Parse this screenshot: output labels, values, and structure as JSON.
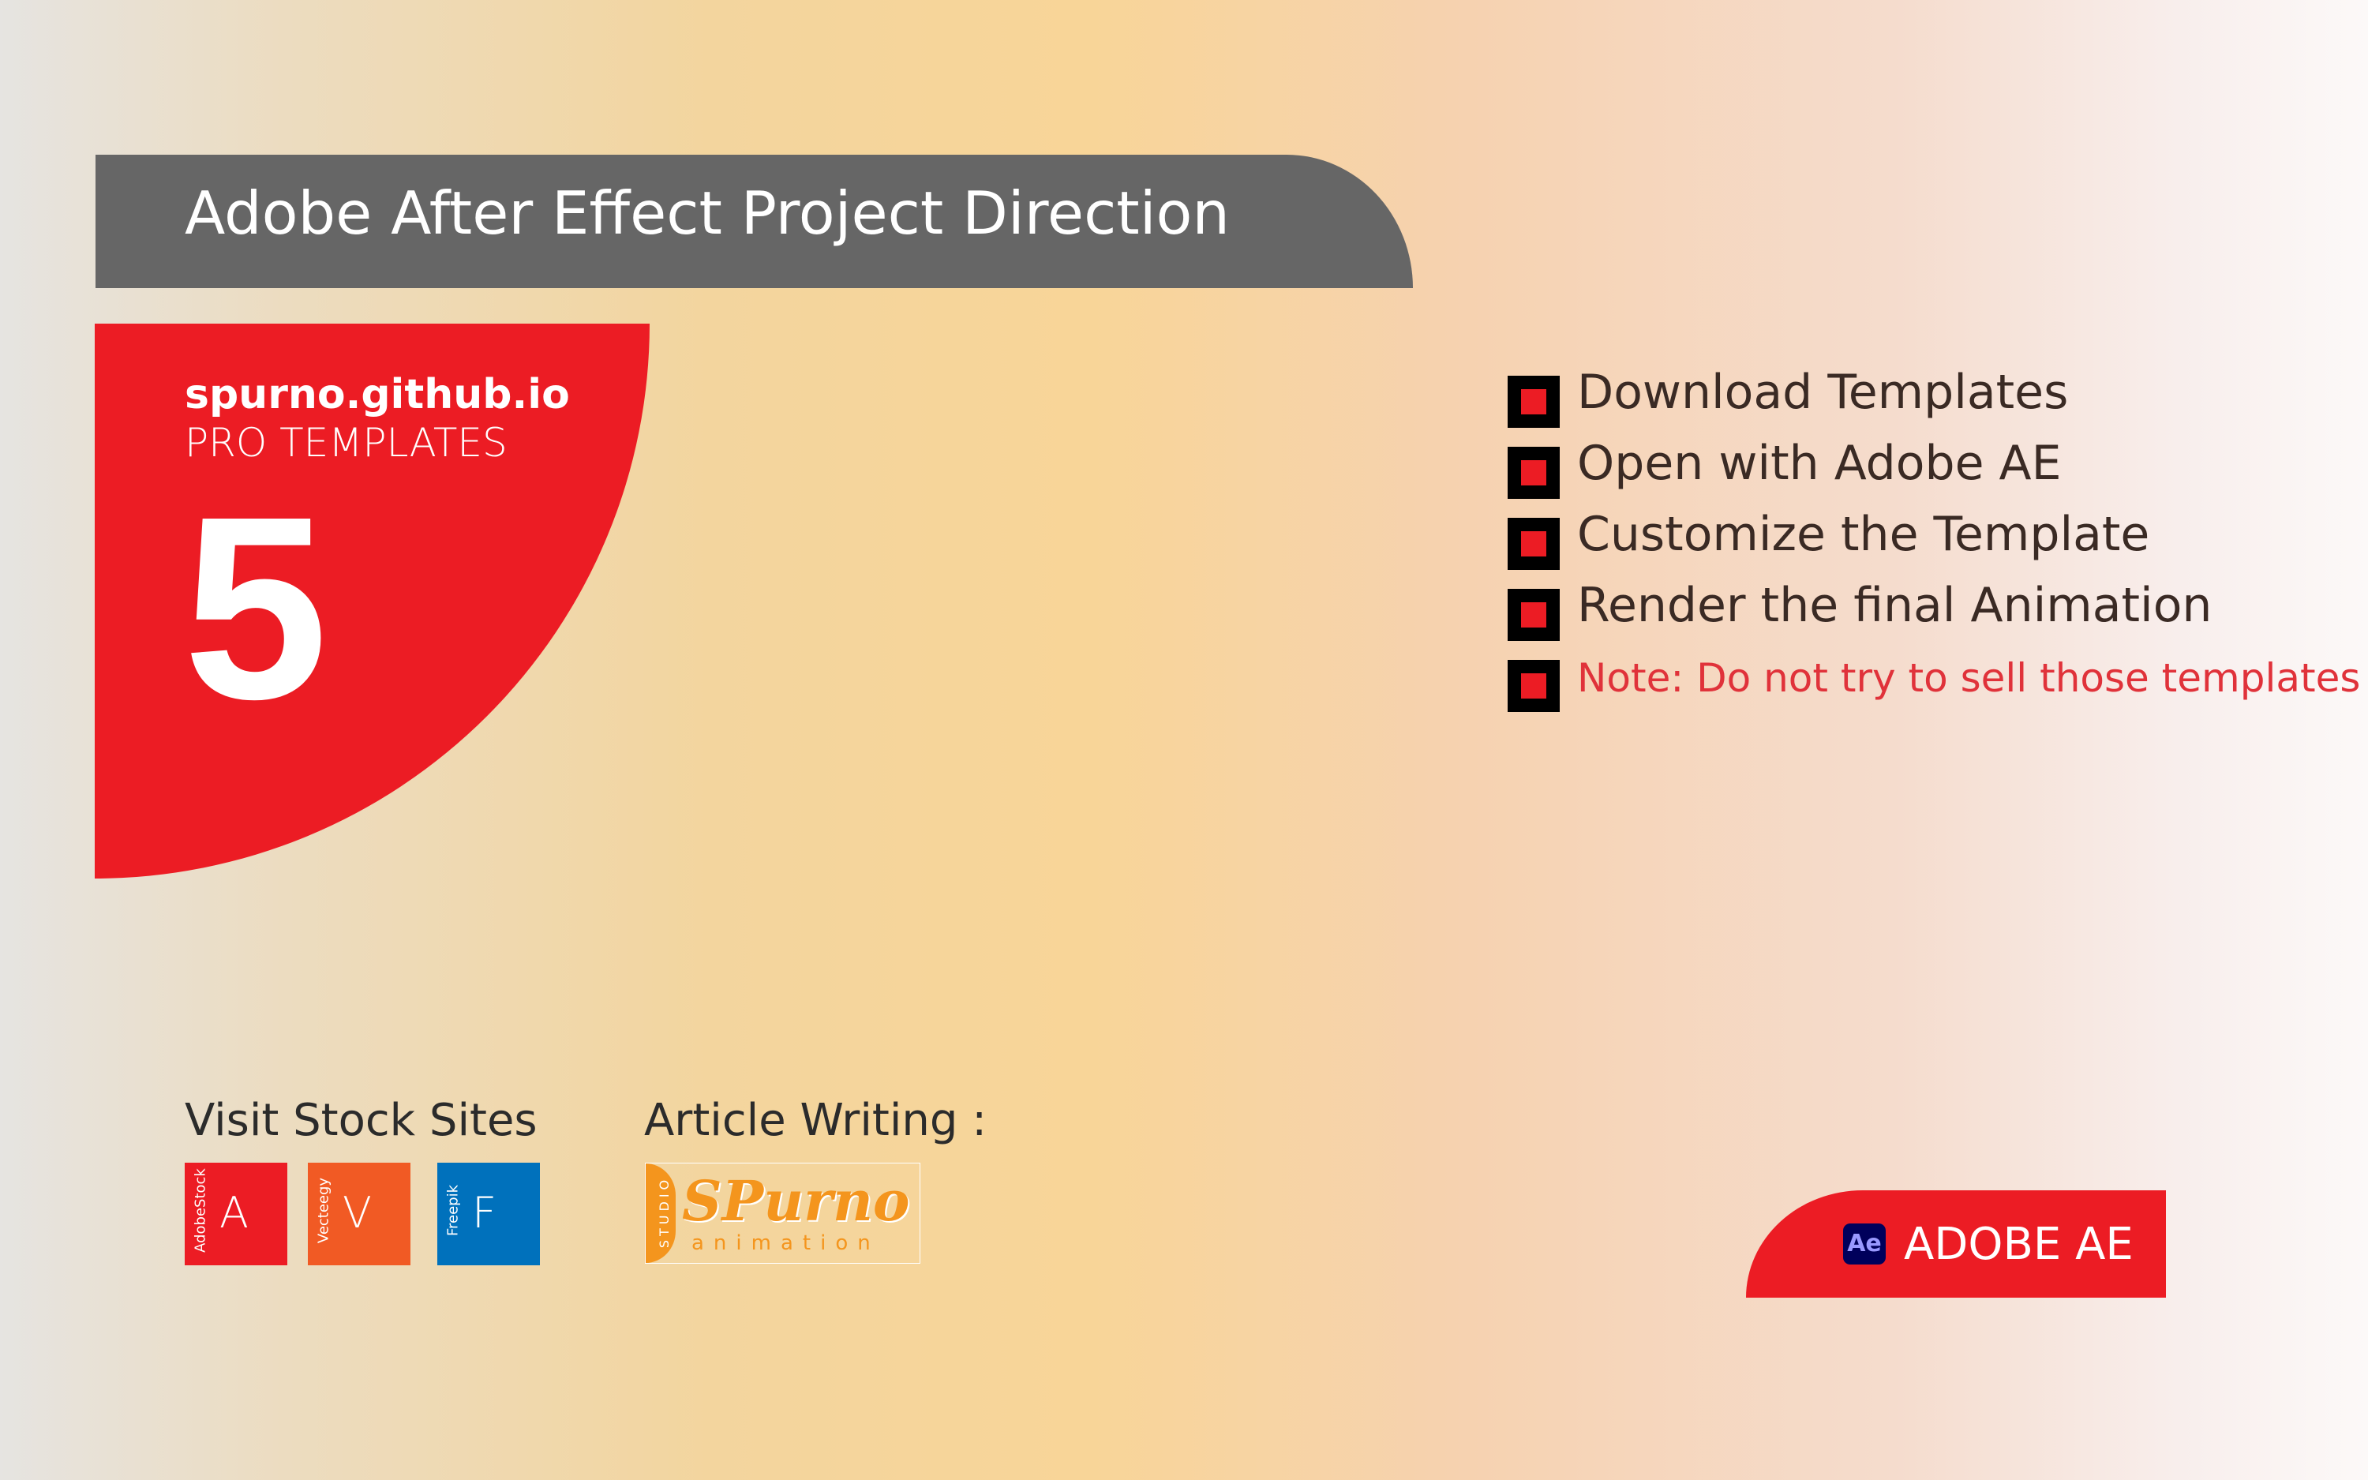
{
  "header": {
    "title": "Adobe After Effect Project Direction"
  },
  "panel": {
    "site_url": "spurno.github.io",
    "subtitle": "PRO TEMPLATES",
    "number": "5"
  },
  "steps": [
    "Download Templates",
    "Open with Adobe AE",
    "Customize the Template",
    "Render the final Animation",
    "Note: Do not try to sell those templates"
  ],
  "stock": {
    "title": "Visit Stock Sites",
    "sites": [
      {
        "side_label": "AdobeStock",
        "letter": "A",
        "color": "#ec1c24"
      },
      {
        "side_label": "Vecteegy",
        "letter": "V",
        "color": "#f15a24"
      },
      {
        "side_label": "Freepik",
        "letter": "F",
        "color": "#0071bc"
      }
    ]
  },
  "article": {
    "title": "Article Writing :",
    "logo": {
      "studio": "STUDIO",
      "brand": "SPurno",
      "tagline": "animation"
    }
  },
  "badge": {
    "icon_text": "Ae",
    "label": "ADOBE AE"
  },
  "colors": {
    "accent_red": "#ec1c24",
    "header_gray": "#666666",
    "ae_orange": "#f4951d"
  }
}
